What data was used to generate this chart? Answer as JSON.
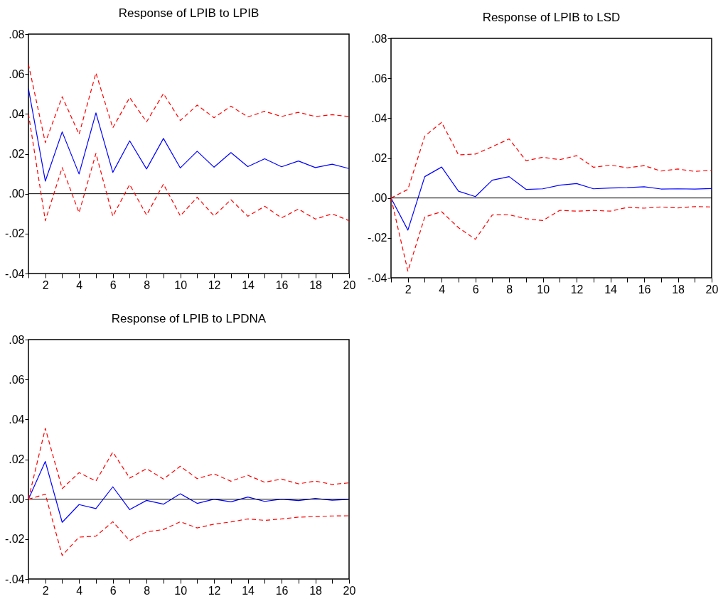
{
  "chart_data": [
    {
      "type": "line",
      "title": "Response of LPIB to LPIB",
      "x": [
        1,
        2,
        3,
        4,
        5,
        6,
        7,
        8,
        9,
        10,
        11,
        12,
        13,
        14,
        15,
        16,
        17,
        18,
        19,
        20
      ],
      "xlim": [
        1,
        20
      ],
      "xticks": [
        {
          "value": 1,
          "label": null
        },
        2,
        {
          "value": 3,
          "label": null
        },
        4,
        {
          "value": 5,
          "label": null
        },
        6,
        {
          "value": 7,
          "label": null
        },
        8,
        {
          "value": 9,
          "label": null
        },
        10,
        {
          "value": 11,
          "label": null
        },
        12,
        {
          "value": 13,
          "label": null
        },
        14,
        {
          "value": 15,
          "label": null
        },
        16,
        {
          "value": 17,
          "label": null
        },
        18,
        {
          "value": 19,
          "label": null
        },
        20
      ],
      "ylim": [
        -0.04,
        0.08
      ],
      "yticks": [
        {
          "value": -0.04,
          "label": "-.04"
        },
        {
          "value": -0.02,
          "label": "-.02"
        },
        {
          "value": 0,
          "label": ".00"
        },
        {
          "value": 0.02,
          "label": ".02"
        },
        {
          "value": 0.04,
          "label": ".04"
        },
        {
          "value": 0.06,
          "label": ".06"
        },
        {
          "value": 0.08,
          "label": ".08"
        }
      ],
      "ref_lines": [
        {
          "axis": "y",
          "value": 0,
          "color": "#000000"
        }
      ],
      "series": [
        {
          "color": "#0000ff",
          "line_style": "solid",
          "values": [
            0.0527,
            0.0063,
            0.031,
            0.0099,
            0.0405,
            0.0107,
            0.0265,
            0.0124,
            0.0277,
            0.0129,
            0.0213,
            0.0133,
            0.0206,
            0.0136,
            0.0175,
            0.0135,
            0.0164,
            0.0131,
            0.0148,
            0.0126
          ]
        },
        {
          "color": "#ff0000",
          "line_style": "dashed",
          "values": [
            0.0649,
            0.0256,
            0.0486,
            0.0298,
            0.0605,
            0.033,
            0.0482,
            0.036,
            0.0502,
            0.0367,
            0.0444,
            0.0381,
            0.0439,
            0.0385,
            0.0413,
            0.0387,
            0.0408,
            0.0387,
            0.0396,
            0.0387
          ]
        },
        {
          "color": "#ff0000",
          "line_style": "dashed",
          "values": [
            0.0401,
            -0.0135,
            0.0131,
            -0.0095,
            0.0202,
            -0.0113,
            0.0046,
            -0.0107,
            0.0048,
            -0.0111,
            -0.0018,
            -0.0111,
            -0.003,
            -0.0113,
            -0.0063,
            -0.0121,
            -0.0077,
            -0.0127,
            -0.0101,
            -0.0135
          ]
        }
      ]
    },
    {
      "type": "line",
      "title": "Response of LPIB to LSD",
      "x": [
        1,
        2,
        3,
        4,
        5,
        6,
        7,
        8,
        9,
        10,
        11,
        12,
        13,
        14,
        15,
        16,
        17,
        18,
        19,
        20
      ],
      "xlim": [
        1,
        20
      ],
      "xticks": [
        {
          "value": 1,
          "label": null
        },
        2,
        {
          "value": 3,
          "label": null
        },
        4,
        {
          "value": 5,
          "label": null
        },
        6,
        {
          "value": 7,
          "label": null
        },
        8,
        {
          "value": 9,
          "label": null
        },
        10,
        {
          "value": 11,
          "label": null
        },
        12,
        {
          "value": 13,
          "label": null
        },
        14,
        {
          "value": 15,
          "label": null
        },
        16,
        {
          "value": 17,
          "label": null
        },
        18,
        {
          "value": 19,
          "label": null
        },
        20
      ],
      "ylim": [
        -0.04,
        0.08
      ],
      "yticks": [
        {
          "value": -0.04,
          "label": "-.04"
        },
        {
          "value": -0.02,
          "label": "-.02"
        },
        {
          "value": 0,
          "label": ".00"
        },
        {
          "value": 0.02,
          "label": ".02"
        },
        {
          "value": 0.04,
          "label": ".04"
        },
        {
          "value": 0.06,
          "label": ".06"
        },
        {
          "value": 0.08,
          "label": ".08"
        }
      ],
      "ref_lines": [
        {
          "axis": "y",
          "value": 0,
          "color": "#000000"
        }
      ],
      "series": [
        {
          "color": "#0000ff",
          "line_style": "solid",
          "values": [
            0,
            -0.0161,
            0.0107,
            0.0155,
            0.0034,
            0.0007,
            0.0089,
            0.0107,
            0.0043,
            0.0046,
            0.0064,
            0.0072,
            0.0046,
            0.005,
            0.0052,
            0.0056,
            0.0045,
            0.0046,
            0.0045,
            0.0047
          ]
        },
        {
          "color": "#ff0000",
          "line_style": "dashed",
          "values": [
            0,
            0.0043,
            0.031,
            0.0379,
            0.0216,
            0.022,
            0.0257,
            0.0296,
            0.0187,
            0.0204,
            0.0192,
            0.0212,
            0.0154,
            0.0165,
            0.0151,
            0.0162,
            0.0135,
            0.0145,
            0.0133,
            0.0139
          ]
        },
        {
          "color": "#ff0000",
          "line_style": "dashed",
          "values": [
            0,
            -0.0367,
            -0.0095,
            -0.0069,
            -0.0149,
            -0.0207,
            -0.0085,
            -0.0084,
            -0.0104,
            -0.0113,
            -0.0062,
            -0.0066,
            -0.0062,
            -0.0066,
            -0.0047,
            -0.0051,
            -0.0045,
            -0.005,
            -0.0043,
            -0.0045
          ]
        }
      ]
    },
    {
      "type": "line",
      "title": "Response of LPIB to LPDNA",
      "x": [
        1,
        2,
        3,
        4,
        5,
        6,
        7,
        8,
        9,
        10,
        11,
        12,
        13,
        14,
        15,
        16,
        17,
        18,
        19,
        20
      ],
      "xlim": [
        1,
        20
      ],
      "xticks": [
        {
          "value": 1,
          "label": null
        },
        2,
        {
          "value": 3,
          "label": null
        },
        4,
        {
          "value": 5,
          "label": null
        },
        6,
        {
          "value": 7,
          "label": null
        },
        8,
        {
          "value": 9,
          "label": null
        },
        10,
        {
          "value": 11,
          "label": null
        },
        12,
        {
          "value": 13,
          "label": null
        },
        14,
        {
          "value": 15,
          "label": null
        },
        16,
        {
          "value": 17,
          "label": null
        },
        18,
        {
          "value": 19,
          "label": null
        },
        20
      ],
      "ylim": [
        -0.04,
        0.08
      ],
      "yticks": [
        {
          "value": -0.04,
          "label": "-.04"
        },
        {
          "value": -0.02,
          "label": "-.02"
        },
        {
          "value": 0,
          "label": ".00"
        },
        {
          "value": 0.02,
          "label": ".02"
        },
        {
          "value": 0.04,
          "label": ".04"
        },
        {
          "value": 0.06,
          "label": ".06"
        },
        {
          "value": 0.08,
          "label": ".08"
        }
      ],
      "ref_lines": [
        {
          "axis": "y",
          "value": 0,
          "color": "#000000"
        }
      ],
      "series": [
        {
          "color": "#0000ff",
          "line_style": "solid",
          "values": [
            0,
            0.0189,
            -0.0116,
            -0.0027,
            -0.0047,
            0.0062,
            -0.0052,
            -0.0006,
            -0.0025,
            0.0027,
            -0.0021,
            0,
            -0.0013,
            0.0011,
            -0.0011,
            0,
            -0.0007,
            0.0004,
            -0.0005,
            -0.0001
          ]
        },
        {
          "color": "#ff0000",
          "line_style": "dashed",
          "values": [
            0,
            0.0355,
            0.0053,
            0.0133,
            0.0091,
            0.0236,
            0.0106,
            0.0153,
            0.0101,
            0.0165,
            0.0103,
            0.0127,
            0.009,
            0.012,
            0.0085,
            0.0101,
            0.0077,
            0.0091,
            0.0074,
            0.0082
          ]
        },
        {
          "color": "#ff0000",
          "line_style": "dashed",
          "values": [
            0,
            0.0025,
            -0.0282,
            -0.019,
            -0.0185,
            -0.0113,
            -0.0208,
            -0.0164,
            -0.0152,
            -0.0113,
            -0.0144,
            -0.0125,
            -0.0114,
            -0.0099,
            -0.0106,
            -0.0099,
            -0.009,
            -0.0087,
            -0.0084,
            -0.0083
          ]
        }
      ]
    }
  ]
}
